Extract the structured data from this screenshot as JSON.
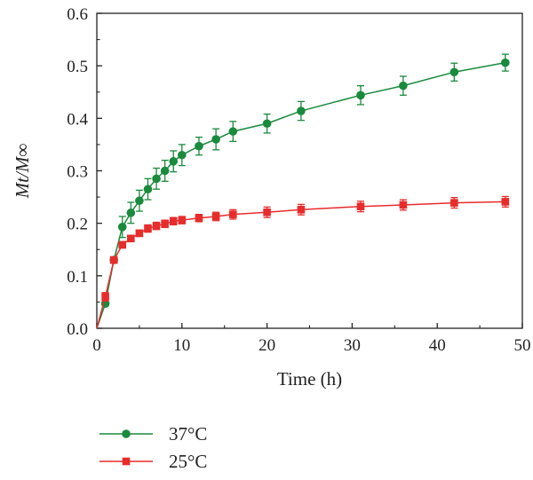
{
  "chart_data": {
    "type": "line",
    "xlabel": "Time (h)",
    "ylabel": "Mt/M∞",
    "xlim": [
      0,
      50
    ],
    "ylim": [
      0,
      0.6
    ],
    "xticks": [
      "0",
      "10",
      "20",
      "30",
      "40",
      "50"
    ],
    "yticks": [
      "0.0",
      "0.1",
      "0.2",
      "0.3",
      "0.4",
      "0.5",
      "0.6"
    ],
    "grid": false,
    "legend_position": "bottom-left",
    "series": [
      {
        "name": "37°C",
        "color": "#1a8a3c",
        "marker": "circle",
        "x": [
          0,
          1,
          2,
          3,
          4,
          5,
          6,
          7,
          8,
          9,
          10,
          12,
          14,
          16,
          20,
          24,
          31,
          36,
          42,
          48
        ],
        "y": [
          0,
          0.047,
          0.13,
          0.193,
          0.22,
          0.243,
          0.265,
          0.285,
          0.3,
          0.318,
          0.33,
          0.347,
          0.36,
          0.375,
          0.39,
          0.414,
          0.444,
          0.462,
          0.488,
          0.506
        ],
        "err": [
          0,
          0,
          0,
          0.02,
          0.02,
          0.02,
          0.02,
          0.02,
          0.02,
          0.02,
          0.02,
          0.017,
          0.02,
          0.019,
          0.018,
          0.018,
          0.018,
          0.018,
          0.017,
          0.016
        ]
      },
      {
        "name": "25°C",
        "color": "#e82c2c",
        "marker": "square",
        "x": [
          0,
          1,
          2,
          3,
          4,
          5,
          6,
          7,
          8,
          9,
          10,
          12,
          14,
          16,
          20,
          24,
          31,
          36,
          42,
          48
        ],
        "y": [
          0,
          0.06,
          0.13,
          0.159,
          0.171,
          0.181,
          0.19,
          0.195,
          0.199,
          0.204,
          0.206,
          0.21,
          0.213,
          0.217,
          0.221,
          0.226,
          0.232,
          0.235,
          0.239,
          0.241
        ],
        "err": [
          0,
          0.008,
          0.006,
          0.006,
          0.006,
          0.006,
          0.007,
          0.007,
          0.007,
          0.007,
          0.007,
          0.007,
          0.008,
          0.009,
          0.01,
          0.01,
          0.01,
          0.01,
          0.01,
          0.01
        ]
      }
    ]
  }
}
